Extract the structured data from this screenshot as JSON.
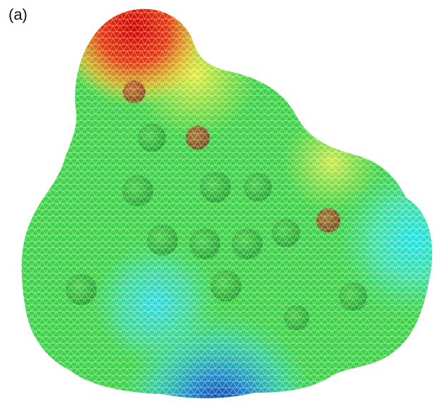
{
  "label": "(a)"
}
